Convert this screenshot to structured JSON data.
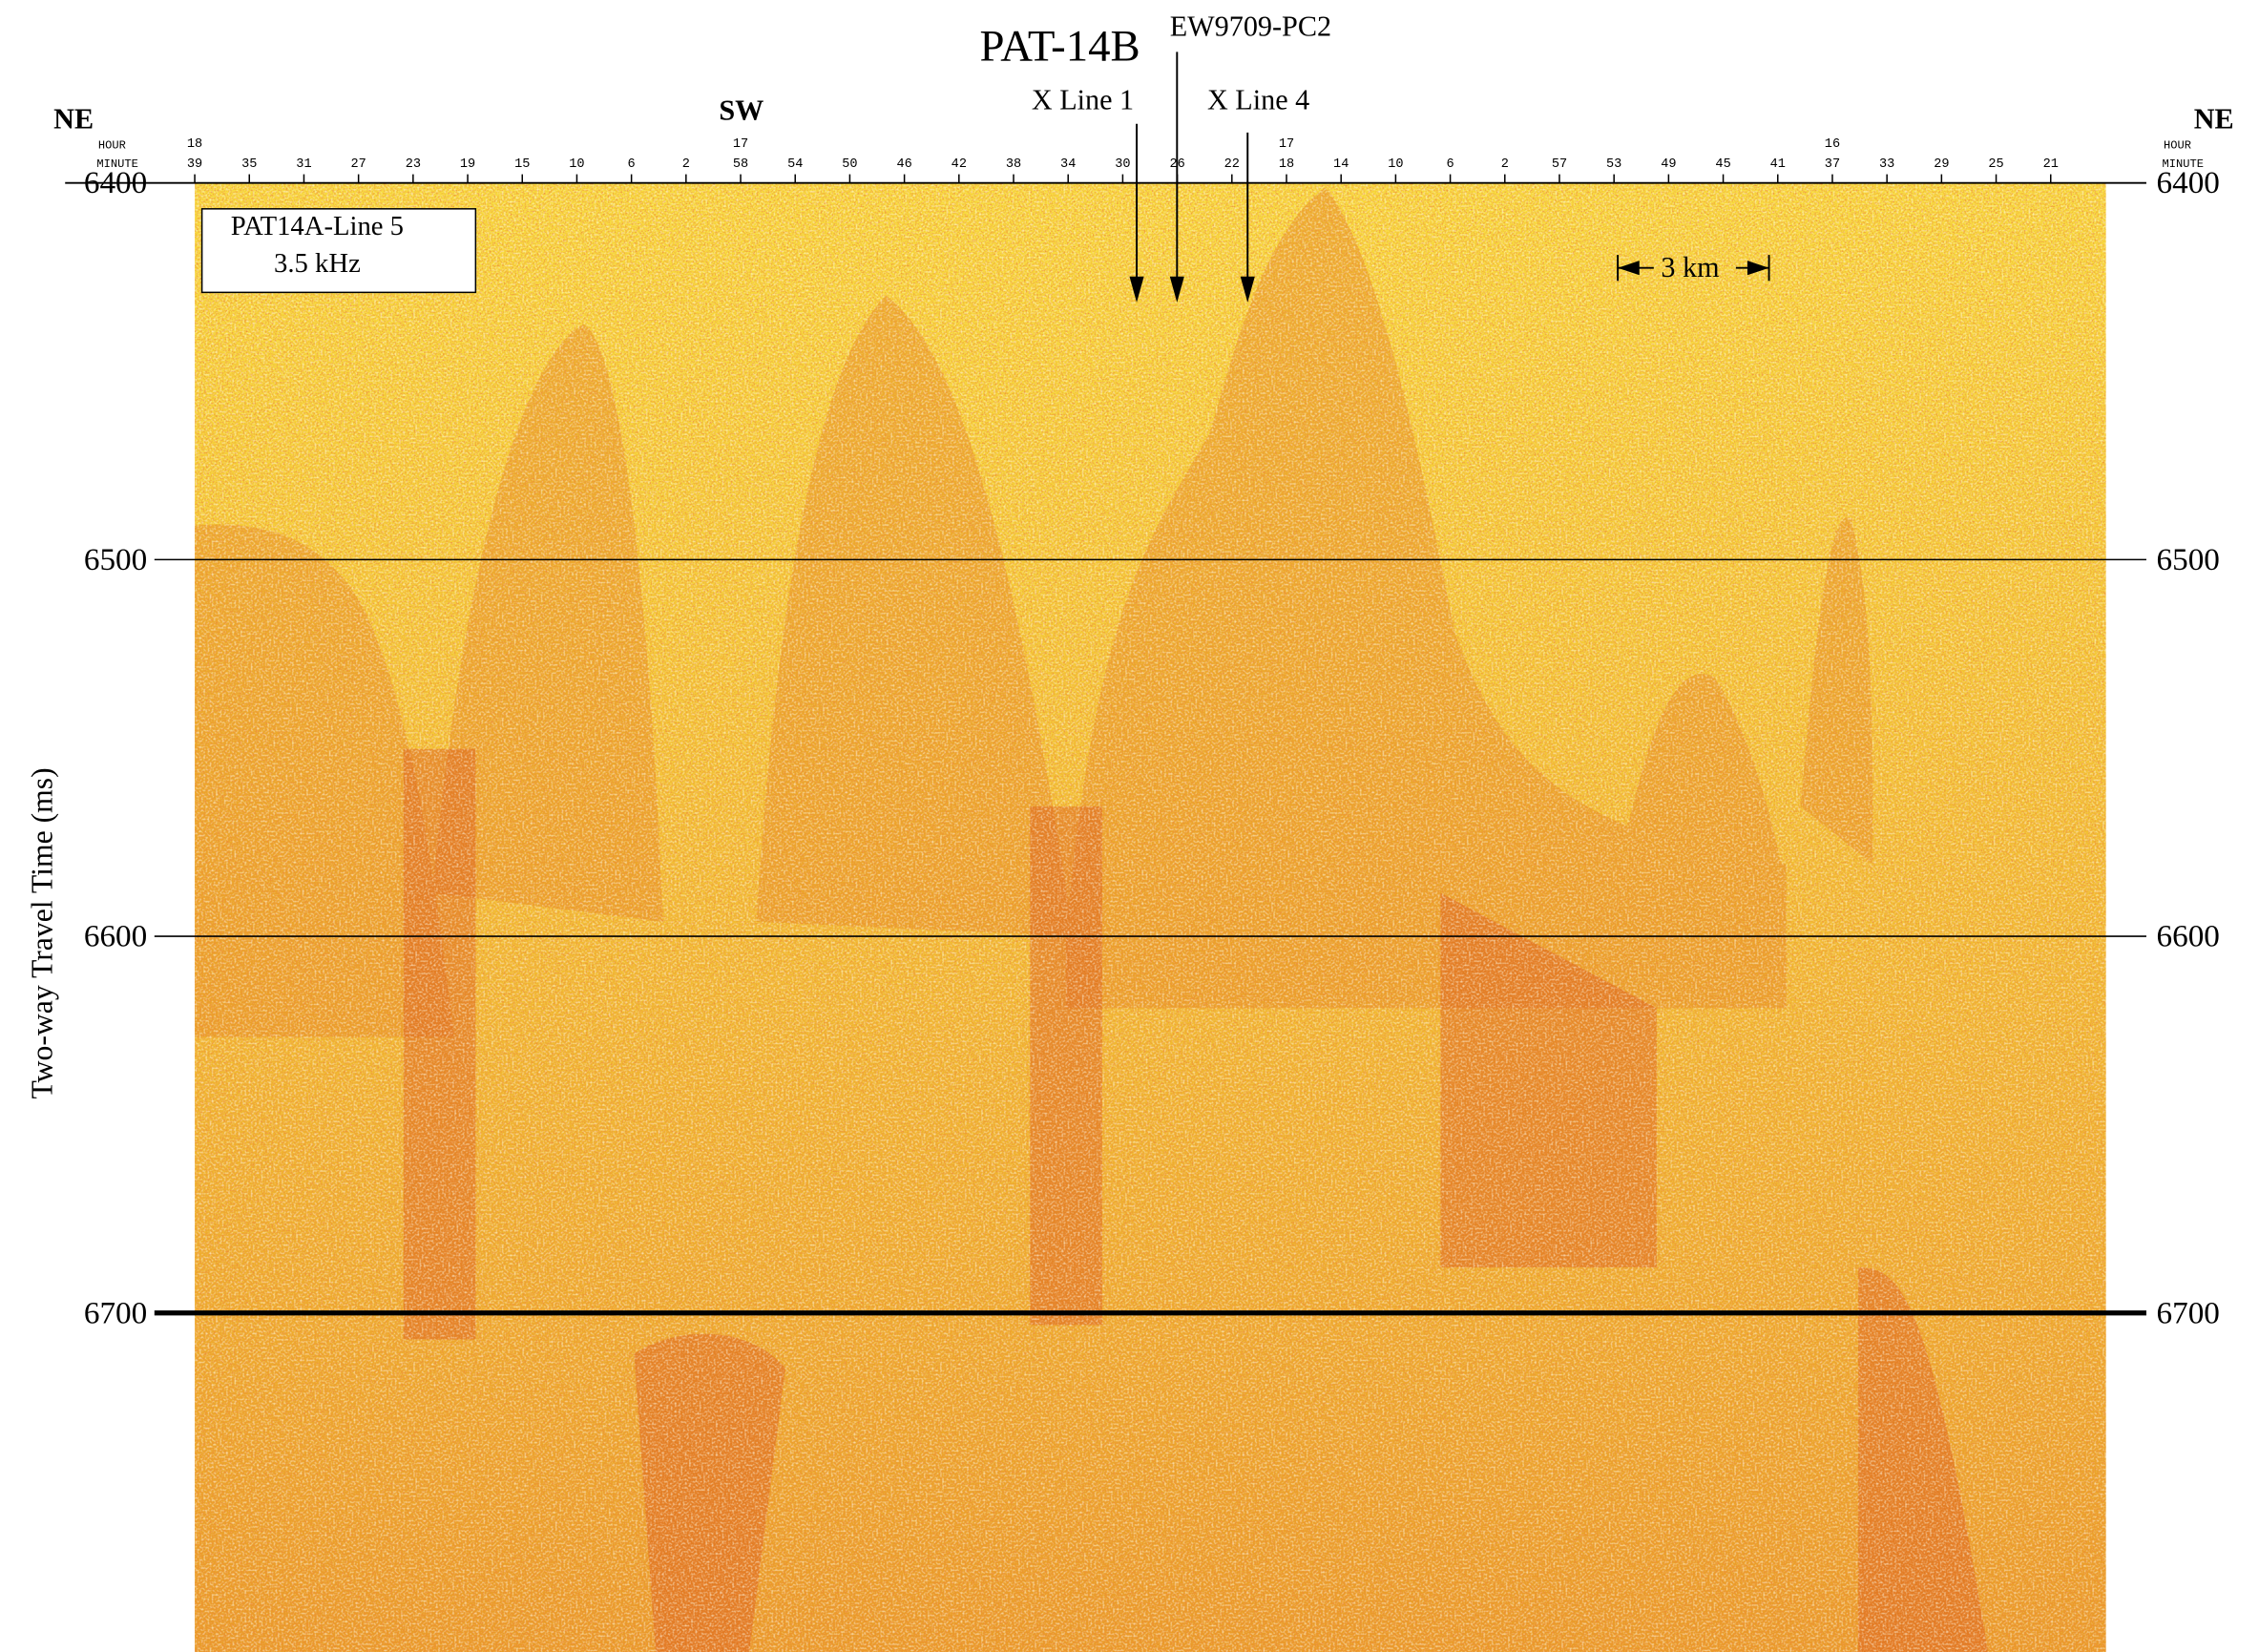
{
  "header": {
    "title": "PAT-14B",
    "core": "EW9709-PC2",
    "crossings": [
      "X Line 1",
      "X Line 4"
    ]
  },
  "directions": {
    "left": "NE",
    "middle": "SW",
    "right": "NE"
  },
  "time_axis": {
    "hour_label": "HOUR",
    "minute_label": "MINUTE",
    "minutes": [
      "39",
      "35",
      "31",
      "27",
      "23",
      "19",
      "15",
      "10",
      "6",
      "2",
      "58",
      "54",
      "50",
      "46",
      "42",
      "38",
      "34",
      "30",
      "26",
      "22",
      "18",
      "14",
      "10",
      "6",
      "2",
      "57",
      "53",
      "49",
      "45",
      "41",
      "37",
      "33",
      "29",
      "25",
      "21"
    ],
    "hours": [
      "18",
      null,
      null,
      null,
      null,
      null,
      null,
      null,
      null,
      null,
      "17",
      null,
      null,
      null,
      null,
      null,
      null,
      null,
      null,
      null,
      "17",
      null,
      null,
      null,
      null,
      null,
      null,
      null,
      null,
      null,
      "16",
      null,
      null,
      null,
      null
    ]
  },
  "y_axis": {
    "label": "Two-way Travel Time (ms)",
    "ylim": [
      6400,
      6790
    ],
    "yticks": [
      6400,
      6500,
      6600,
      6700
    ]
  },
  "inset": {
    "line": "PAT14A-Line 5",
    "frequency": "3.5 kHz"
  },
  "scale_bar": "3 km"
}
